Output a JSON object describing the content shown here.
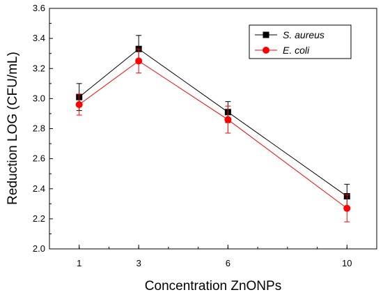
{
  "chart_data": {
    "type": "line",
    "xlabel": "Concentration ZnONPs",
    "ylabel": "Reduction LOG (CFU/mL)",
    "x": [
      1,
      3,
      6,
      10
    ],
    "x_tick_labels": [
      "1",
      "3",
      "6",
      "10"
    ],
    "xlim": [
      0,
      11
    ],
    "ylim": [
      2.0,
      3.6
    ],
    "y_ticks": [
      "2.0",
      "2.2",
      "2.4",
      "2.6",
      "2.8",
      "3.0",
      "3.2",
      "3.4",
      "3.6"
    ],
    "grid": false,
    "legend_position": "top-right",
    "series": [
      {
        "name": "S. aureus",
        "color": "#000000",
        "marker": "square",
        "values": [
          3.01,
          3.33,
          2.91,
          2.35
        ],
        "error": [
          0.09,
          0.09,
          0.07,
          0.08
        ]
      },
      {
        "name": "E. coli",
        "color": "#ff0000",
        "marker": "circle",
        "values": [
          2.96,
          3.25,
          2.86,
          2.27
        ],
        "error": [
          0.07,
          0.08,
          0.09,
          0.09
        ]
      }
    ]
  }
}
